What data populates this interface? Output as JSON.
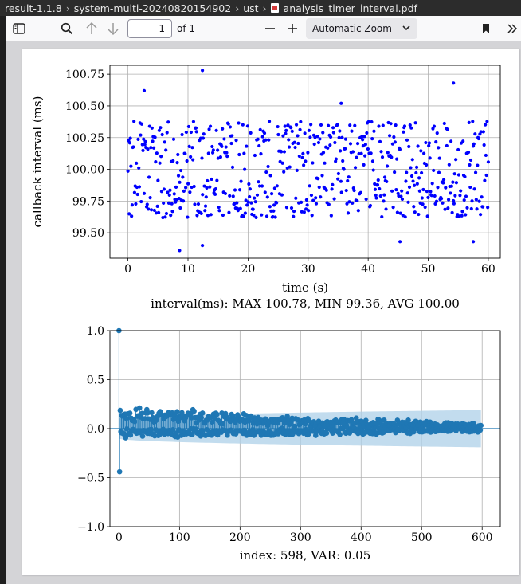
{
  "titlebar": {
    "crumbs": [
      "result-1.1.8",
      "system-multi-20240820154902",
      "ust",
      "analysis_timer_interval.pdf"
    ]
  },
  "toolbar": {
    "page_number": "1",
    "page_count_label": "of 1",
    "zoom_label": "Automatic Zoom",
    "icons": [
      "sidebar-toggle-icon",
      "search-icon",
      "arrow-up-icon",
      "arrow-down-icon",
      "minus-icon",
      "plus-icon",
      "chevron-down-icon",
      "bookmark-icon",
      "double-chevron-right-icon"
    ]
  },
  "chart_data": [
    {
      "type": "scatter",
      "xlabel": "time (s)",
      "ylabel": "callback interval (ms)",
      "caption": "interval(ms): MAX 100.78, MIN 99.36, AVG 100.00",
      "xlim": [
        -3,
        62
      ],
      "ylim": [
        99.3,
        100.82
      ],
      "xticks": [
        0,
        10,
        20,
        30,
        40,
        50,
        60
      ],
      "yticks": [
        99.5,
        99.75,
        100.0,
        100.25,
        100.5,
        100.75
      ],
      "ytick_labels": [
        "99.50",
        "99.75",
        "100.00",
        "100.25",
        "100.50",
        "100.75"
      ],
      "grid": true,
      "marker_color": "#0000ff",
      "n_points": 600,
      "x_range": [
        0,
        60
      ],
      "y_center": 100.0,
      "highlighted_points": [
        {
          "x": 12.4,
          "y": 100.78
        },
        {
          "x": 8.6,
          "y": 99.36
        },
        {
          "x": 12.4,
          "y": 99.4
        },
        {
          "x": 2.7,
          "y": 100.62
        },
        {
          "x": 54.2,
          "y": 100.68
        },
        {
          "x": 35.5,
          "y": 100.52
        },
        {
          "x": 57.5,
          "y": 99.43
        },
        {
          "x": 45.3,
          "y": 99.43
        }
      ]
    },
    {
      "type": "stem",
      "caption": "index: 598, VAR: 0.05",
      "xlim": [
        -15,
        630
      ],
      "ylim": [
        -1.0,
        1.0
      ],
      "xticks": [
        0,
        100,
        200,
        300,
        400,
        500,
        600
      ],
      "yticks": [
        -1.0,
        -0.5,
        0.0,
        0.5,
        1.0
      ],
      "ytick_labels": [
        "−1.0",
        "−0.5",
        "0.0",
        "0.5",
        "1.0"
      ],
      "grid": true,
      "stem_color": "#1f77b4",
      "band_color": "#aed0e8",
      "n_lags": 599,
      "key_values": [
        {
          "lag": 0,
          "value": 1.0
        },
        {
          "lag": 1,
          "value": -0.44
        }
      ],
      "envelope_start": 0.2,
      "envelope_end": 0.02,
      "band_half_width_start": 0.1,
      "band_half_width_end": 0.19
    }
  ]
}
